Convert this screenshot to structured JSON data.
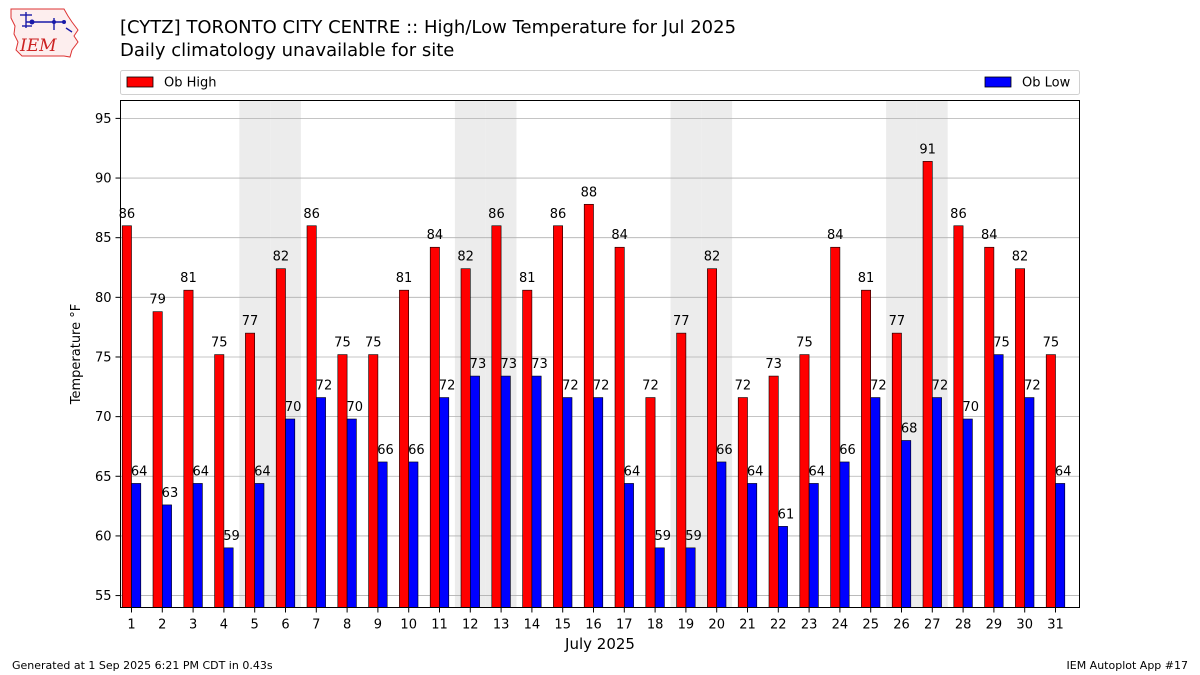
{
  "header": {
    "title": "[CYTZ] TORONTO CITY CENTRE :: High/Low Temperature for Jul 2025",
    "subtitle": "Daily climatology unavailable for site"
  },
  "logo": {
    "text": "IEM",
    "icon": "iowa-state-map-logo"
  },
  "footer": {
    "generated": "Generated at 1 Sep 2025 6:21 PM CDT in 0.43s",
    "app": "IEM Autoplot App #17"
  },
  "chart_data": {
    "type": "bar",
    "xlabel": "July 2025",
    "ylabel": "Temperature °F",
    "ylim": [
      54,
      96.5
    ],
    "yticks": [
      55,
      60,
      65,
      70,
      75,
      80,
      85,
      90,
      95
    ],
    "grid": true,
    "legend_placement": "top",
    "weekend_shading": [
      5,
      6,
      12,
      13,
      19,
      20,
      26,
      27
    ],
    "categories": [
      "1",
      "2",
      "3",
      "4",
      "5",
      "6",
      "7",
      "8",
      "9",
      "10",
      "11",
      "12",
      "13",
      "14",
      "15",
      "16",
      "17",
      "18",
      "19",
      "20",
      "21",
      "22",
      "23",
      "24",
      "25",
      "26",
      "27",
      "28",
      "29",
      "30",
      "31"
    ],
    "series": [
      {
        "name": "Ob High",
        "color": "#ff0000",
        "values": [
          86,
          78.8,
          80.6,
          75.2,
          77,
          82.4,
          86,
          75.2,
          75.2,
          80.6,
          84.2,
          82.4,
          86,
          80.6,
          86,
          87.8,
          84.2,
          71.6,
          77,
          82.4,
          71.6,
          73.4,
          75.2,
          84.2,
          80.6,
          77,
          91.4,
          86,
          84.2,
          82.4,
          75.2
        ],
        "labels": [
          "86",
          "79",
          "81",
          "75",
          "77",
          "82",
          "86",
          "75",
          "75",
          "81",
          "84",
          "82",
          "86",
          "81",
          "86",
          "88",
          "84",
          "72",
          "77",
          "82",
          "72",
          "73",
          "75",
          "84",
          "81",
          "77",
          "91",
          "86",
          "84",
          "82",
          "75"
        ]
      },
      {
        "name": "Ob Low",
        "color": "#0000ff",
        "values": [
          64.4,
          62.6,
          64.4,
          59,
          64.4,
          69.8,
          71.6,
          69.8,
          66.2,
          66.2,
          71.6,
          73.4,
          73.4,
          73.4,
          71.6,
          71.6,
          64.4,
          59,
          59,
          66.2,
          64.4,
          60.8,
          64.4,
          66.2,
          71.6,
          68,
          71.6,
          69.8,
          75.2,
          71.6,
          64.4
        ],
        "labels": [
          "64",
          "63",
          "64",
          "59",
          "64",
          "70",
          "72",
          "70",
          "66",
          "66",
          "72",
          "73",
          "73",
          "73",
          "72",
          "72",
          "64",
          "59",
          "59",
          "66",
          "64",
          "61",
          "64",
          "66",
          "72",
          "68",
          "72",
          "70",
          "75",
          "72",
          "64"
        ]
      }
    ]
  }
}
